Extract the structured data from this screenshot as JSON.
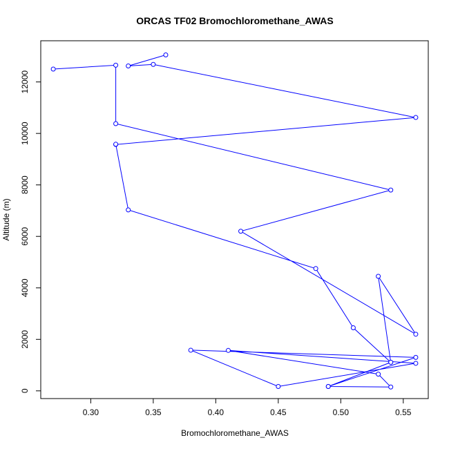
{
  "chart_data": {
    "type": "line",
    "title": "ORCAS TF02 Bromochloromethane_AWAS",
    "xlabel": "Bromochloromethane_AWAS",
    "ylabel": "Altitude (m)",
    "xlim": [
      0.26,
      0.57
    ],
    "ylim": [
      -300,
      13600
    ],
    "x_ticks": [
      0.3,
      0.35,
      0.4,
      0.45,
      0.5,
      0.55
    ],
    "x_tick_labels": [
      "0.30",
      "0.35",
      "0.40",
      "0.45",
      "0.50",
      "0.55"
    ],
    "y_ticks": [
      0,
      2000,
      4000,
      6000,
      8000,
      10000,
      12000
    ],
    "y_tick_labels": [
      "0",
      "2000",
      "4000",
      "6000",
      "8000",
      "10000",
      "12000"
    ],
    "grid": false,
    "color": "#0000ff",
    "series": [
      {
        "x": [
          0.36,
          0.33,
          0.35,
          0.56,
          0.32,
          0.32,
          0.33,
          0.48,
          0.51,
          0.54,
          0.49,
          0.56,
          0.38,
          0.45,
          0.56,
          0.41,
          0.53,
          0.54,
          0.49,
          0.54,
          0.53,
          0.56,
          0.42,
          0.54,
          0.32,
          0.32,
          0.27
        ],
        "y": [
          13050,
          12620,
          12680,
          10620,
          9570,
          9580,
          7030,
          4750,
          2450,
          1110,
          170,
          1300,
          1580,
          170,
          1070,
          1570,
          650,
          150,
          170,
          1110,
          4450,
          2200,
          6200,
          7800,
          10380,
          12650,
          12500
        ]
      }
    ]
  }
}
